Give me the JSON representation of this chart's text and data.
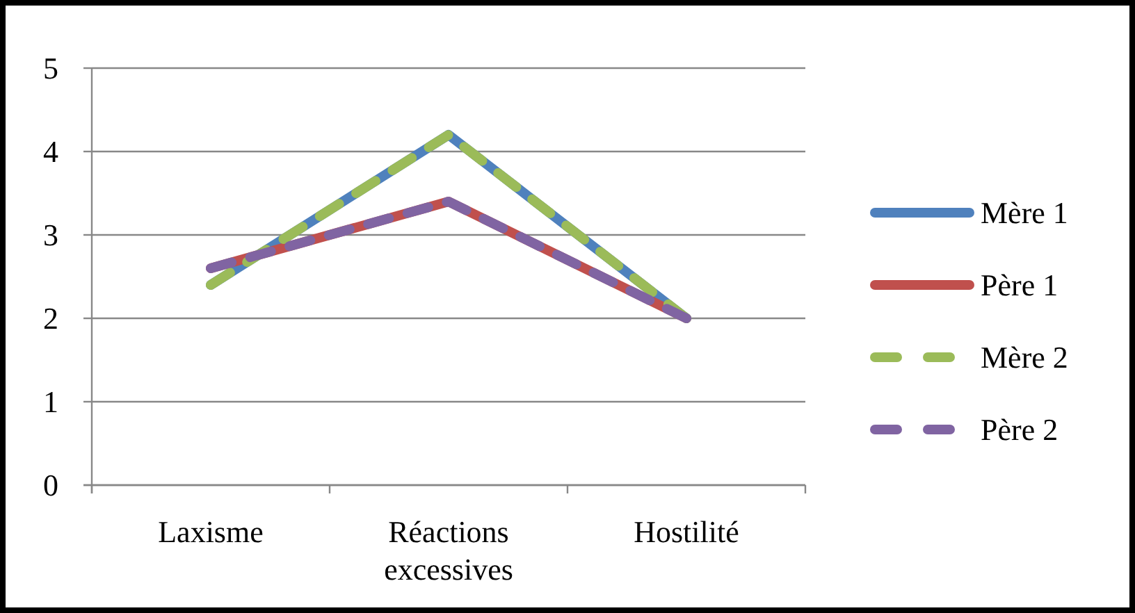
{
  "chart_data": {
    "type": "line",
    "categories": [
      "Laxisme",
      "Réactions excessives",
      "Hostilité"
    ],
    "series": [
      {
        "name": "Mère 1",
        "color": "#4f81bd",
        "values": [
          2.4,
          4.2,
          2.0
        ],
        "line_style": "solid"
      },
      {
        "name": "Père 1",
        "color": "#c0504d",
        "values": [
          2.6,
          3.4,
          2.0
        ],
        "line_style": "solid"
      },
      {
        "name": "Mère 2",
        "color": "#9bbb59",
        "values": [
          2.4,
          4.2,
          2.0
        ],
        "line_style": "dashed"
      },
      {
        "name": "Père 2",
        "color": "#8064a2",
        "values": [
          2.6,
          3.4,
          2.0
        ],
        "line_style": "dashed"
      }
    ],
    "ylim": [
      0,
      5
    ],
    "yticks": [
      0,
      1,
      2,
      3,
      4,
      5
    ],
    "grid": "y",
    "legend": "right"
  }
}
